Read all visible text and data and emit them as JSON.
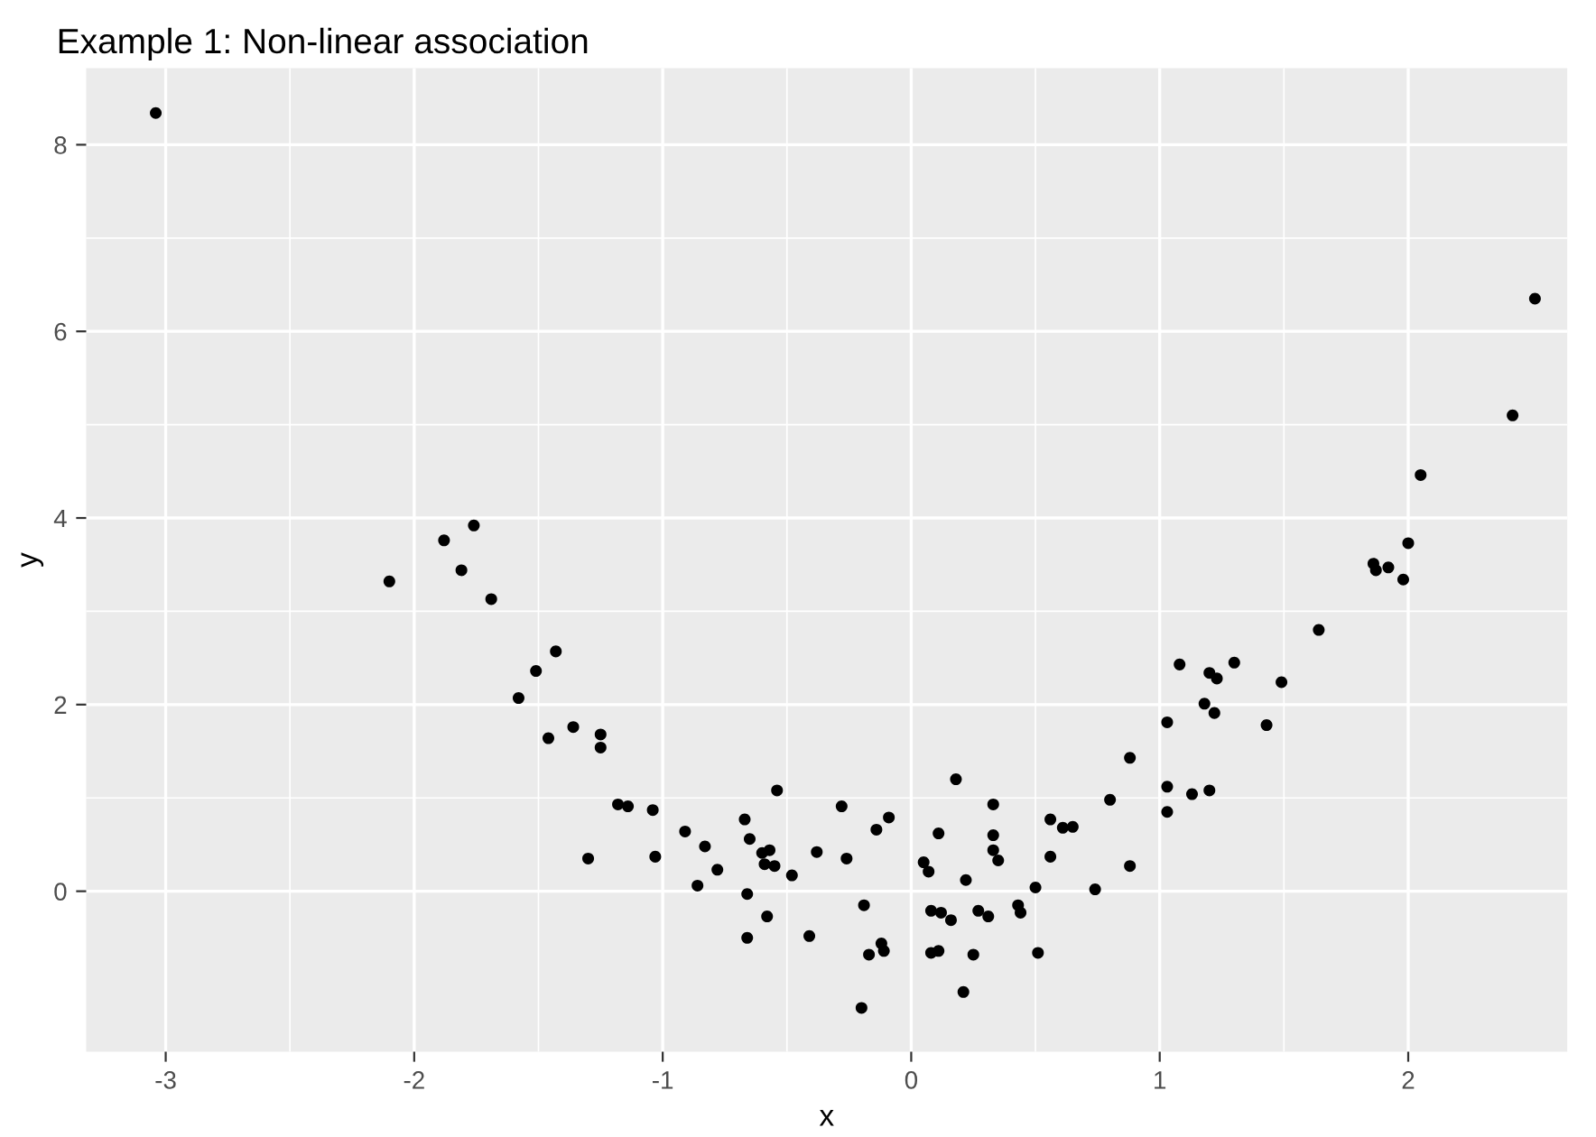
{
  "chart_data": {
    "type": "scatter",
    "title": "Example 1: Non-linear association",
    "xlabel": "x",
    "ylabel": "y",
    "xlim": [
      -3.32,
      2.64
    ],
    "ylim": [
      -1.72,
      8.82
    ],
    "xticks": [
      -3,
      -2,
      -1,
      0,
      1,
      2
    ],
    "yticks": [
      0,
      2,
      4,
      6,
      8
    ],
    "grid": true,
    "marker": "circle",
    "series": [
      {
        "color": "#000000",
        "x": [
          -3.04,
          -2.1,
          -1.88,
          -1.81,
          -1.76,
          -1.69,
          -1.58,
          -1.51,
          -1.46,
          -1.43,
          -1.36,
          -1.25,
          -1.25,
          -1.3,
          -1.18,
          -1.14,
          -1.04,
          -1.03,
          -0.91,
          -0.83,
          -0.86,
          -0.78,
          -0.67,
          -0.65,
          -0.6,
          -0.57,
          -0.59,
          -0.55,
          -0.54,
          -0.66,
          -0.58,
          -0.66,
          -0.48,
          -0.41,
          -0.38,
          -0.28,
          -0.26,
          -0.19,
          -0.17,
          -0.2,
          -0.14,
          -0.09,
          -0.12,
          -0.11,
          0.05,
          0.07,
          0.11,
          0.18,
          0.08,
          0.12,
          0.16,
          0.08,
          0.11,
          0.22,
          0.21,
          0.25,
          0.27,
          0.31,
          0.33,
          0.33,
          0.33,
          0.35,
          0.43,
          0.44,
          0.5,
          0.51,
          0.56,
          0.56,
          0.61,
          0.65,
          0.74,
          0.8,
          0.88,
          0.88,
          1.03,
          1.03,
          1.03,
          1.13,
          1.2,
          1.08,
          1.18,
          1.22,
          1.2,
          1.23,
          1.3,
          1.43,
          1.49,
          1.64,
          1.86,
          1.87,
          1.92,
          1.98,
          2.0,
          2.05,
          2.42,
          2.51
        ],
        "values": [
          8.34,
          3.32,
          3.76,
          3.44,
          3.92,
          3.13,
          2.07,
          2.36,
          1.64,
          2.57,
          1.76,
          1.68,
          1.54,
          0.35,
          0.93,
          0.91,
          0.87,
          0.37,
          0.64,
          0.48,
          0.06,
          0.23,
          0.77,
          0.56,
          0.41,
          0.44,
          0.29,
          0.27,
          1.08,
          -0.03,
          -0.27,
          -0.5,
          0.17,
          -0.48,
          0.42,
          0.91,
          0.35,
          -0.15,
          -0.68,
          -1.25,
          0.66,
          0.79,
          -0.56,
          -0.64,
          0.31,
          0.21,
          0.62,
          1.2,
          -0.21,
          -0.23,
          -0.31,
          -0.66,
          -0.64,
          0.12,
          -1.08,
          -0.68,
          -0.21,
          -0.27,
          0.93,
          0.6,
          0.44,
          0.33,
          -0.15,
          -0.23,
          0.04,
          -0.66,
          0.77,
          0.37,
          0.68,
          0.69,
          0.02,
          0.98,
          1.43,
          0.27,
          1.12,
          0.85,
          1.81,
          1.04,
          1.08,
          2.43,
          2.01,
          1.91,
          2.34,
          2.28,
          2.45,
          1.78,
          2.24,
          2.8,
          3.51,
          3.44,
          3.47,
          3.34,
          3.73,
          4.46,
          5.1,
          6.35
        ]
      }
    ]
  }
}
